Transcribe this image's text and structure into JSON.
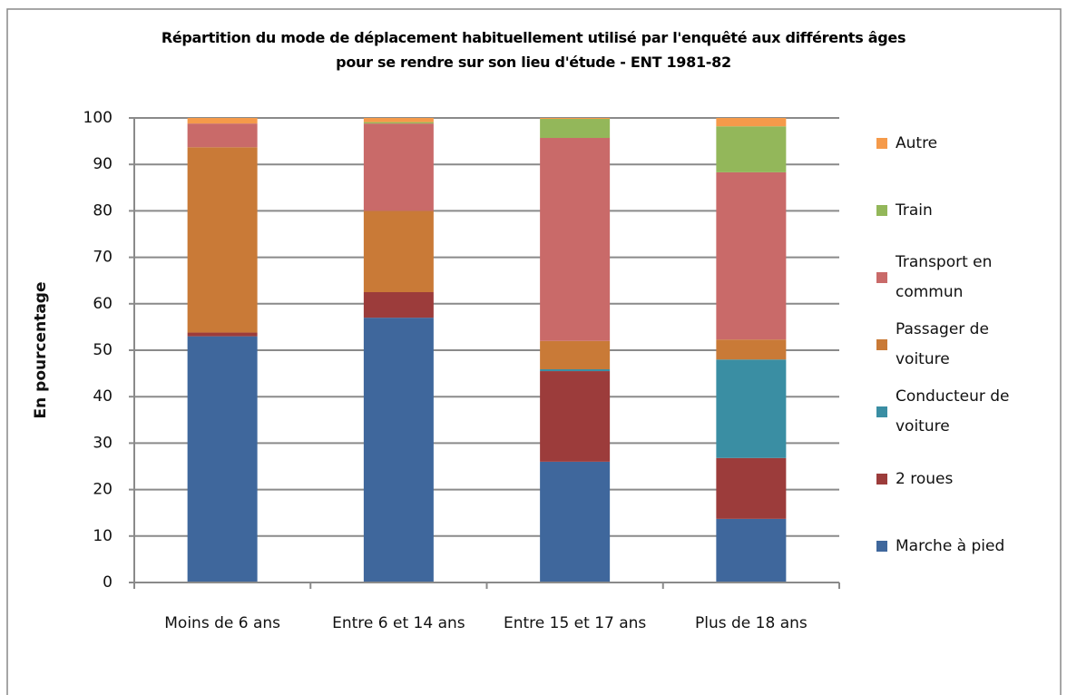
{
  "chart_data": {
    "type": "stacked_bar",
    "title": "Répartition du mode de déplacement habituellement utilisé par l'enquêté aux différents âges\npour se rendre sur son lieu d'étude - ENT 1981-82",
    "y_label": "En pourcentage",
    "categories": [
      "Moins de 6 ans",
      "Entre 6 et 14 ans",
      "Entre 15 et 17 ans",
      "Plus de 18 ans"
    ],
    "ylim": [
      0,
      100
    ],
    "yticks": [
      0,
      10,
      20,
      30,
      40,
      50,
      60,
      70,
      80,
      90,
      100
    ],
    "grid": true,
    "legend": "right",
    "series": [
      {
        "name": "Marche à pied",
        "color": "#3f679c",
        "values": [
          53,
          57,
          26,
          13.7
        ]
      },
      {
        "name": "2 roues",
        "color": "#9c3c3b",
        "values": [
          0.8,
          5.5,
          19.5,
          13.1
        ]
      },
      {
        "name": "Conducteur de voiture",
        "color": "#3a8ea3",
        "values": [
          0,
          0,
          0.4,
          21.2
        ]
      },
      {
        "name": "Passager de voiture",
        "color": "#c97a37",
        "values": [
          39.9,
          17.5,
          6.1,
          4.3
        ]
      },
      {
        "name": "Transport en commun",
        "color": "#c96a69",
        "values": [
          5.1,
          18.8,
          43.7,
          36
        ]
      },
      {
        "name": "Train",
        "color": "#93b75a",
        "values": [
          0,
          0.3,
          4.1,
          9.9
        ]
      },
      {
        "name": "Autre",
        "color": "#f59a4a",
        "values": [
          1.2,
          0.9,
          0.2,
          1.8
        ]
      }
    ]
  }
}
